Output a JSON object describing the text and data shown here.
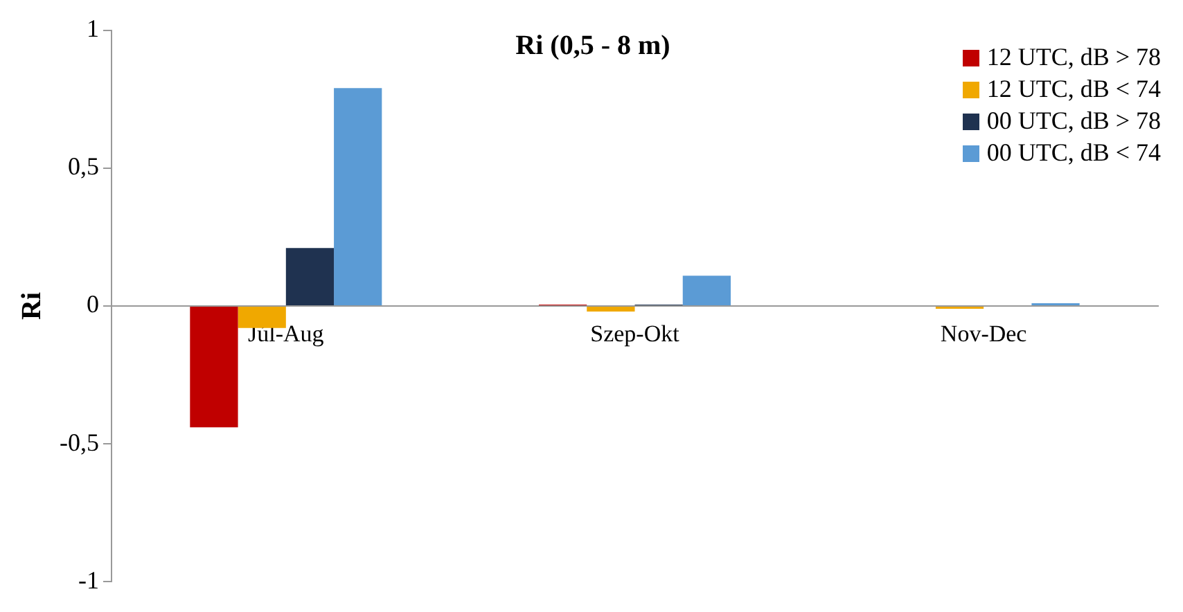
{
  "chart_data": {
    "type": "bar",
    "title": "Ri (0,5 - 8 m)",
    "ylabel": "Ri",
    "categories": [
      "Júl-Aug",
      "Szep-Okt",
      "Nov-Dec"
    ],
    "series": [
      {
        "name": "12 UTC, dB > 78",
        "color": "#c00000",
        "values": [
          -0.44,
          0.005,
          0
        ]
      },
      {
        "name": "12 UTC, dB < 74",
        "color": "#f0a800",
        "values": [
          -0.08,
          -0.02,
          -0.01
        ]
      },
      {
        "name": "00 UTC, dB > 78",
        "color": "#1f3250",
        "values": [
          0.21,
          0.005,
          0
        ]
      },
      {
        "name": "00 UTC, dB < 74",
        "color": "#5b9bd5",
        "values": [
          0.79,
          0.11,
          0.01
        ]
      }
    ],
    "ylim": [
      -1,
      1
    ],
    "yticks": [
      {
        "value": -1,
        "label": "-1"
      },
      {
        "value": -0.5,
        "label": "-0,5"
      },
      0,
      {
        "value": 0.5,
        "label": "0,5"
      },
      1
    ],
    "grid": false,
    "legend": "top right"
  }
}
